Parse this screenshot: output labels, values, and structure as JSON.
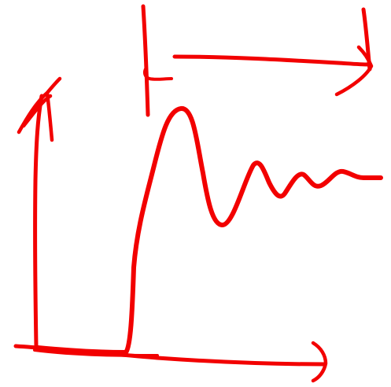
{
  "drawing": {
    "description_style": "freehand sketch",
    "stroke_color": "#f20000",
    "background": "#ffffff",
    "elements": [
      {
        "name": "y-axis",
        "kind": "arrow"
      },
      {
        "name": "x-axis",
        "kind": "arrow"
      },
      {
        "name": "step-response-curve",
        "kind": "curve"
      },
      {
        "name": "settling-time-marker",
        "kind": "dimension-arrow"
      }
    ]
  }
}
